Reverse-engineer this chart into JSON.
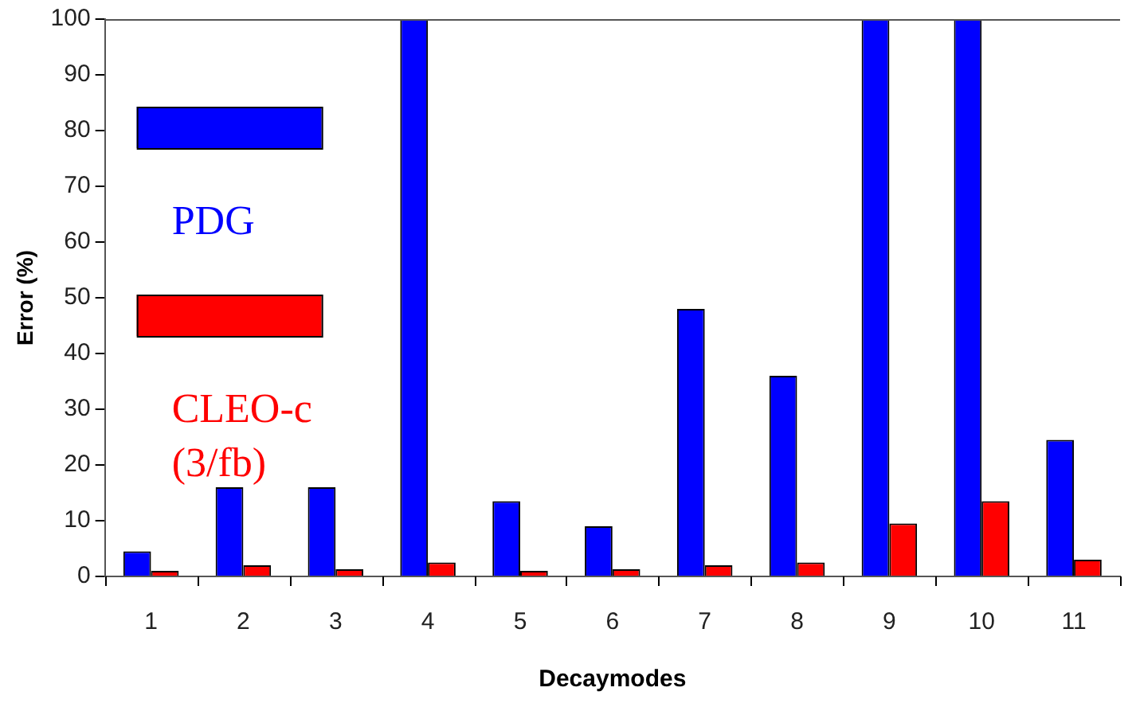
{
  "chart_data": {
    "type": "bar",
    "xlabel": "Decaymodes",
    "ylabel": "Error (%)",
    "categories": [
      "1",
      "2",
      "3",
      "4",
      "5",
      "6",
      "7",
      "8",
      "9",
      "10",
      "11"
    ],
    "series": [
      {
        "name": "PDG",
        "color": "#0000ff",
        "values": [
          4.5,
          16,
          16,
          100,
          13.5,
          9,
          48,
          36,
          100,
          100,
          24.5
        ]
      },
      {
        "name": "CLEO-c (3/fb)",
        "color": "#ff0000",
        "values": [
          1,
          2,
          1.3,
          2.5,
          1,
          1.3,
          2,
          2.5,
          9.5,
          13.5,
          3
        ]
      }
    ],
    "ylim": [
      0,
      100
    ],
    "yticks": [
      0,
      10,
      20,
      30,
      40,
      50,
      60,
      70,
      80,
      90,
      100
    ],
    "grid": false,
    "legend": "top left"
  }
}
